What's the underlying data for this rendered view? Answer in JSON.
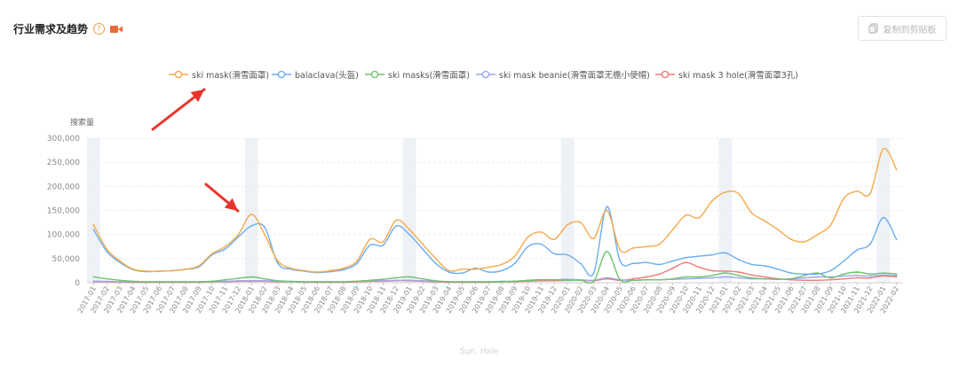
{
  "header": {
    "title": "行业需求及趋势",
    "help_icon": "question-circle-icon",
    "video_icon": "video-camera-icon"
  },
  "toolbar": {
    "copy_label": "复制到剪贴板",
    "copy_icon": "clipboard-icon"
  },
  "watermark": "Sun. Hale",
  "colors": {
    "orange": "#f5a94a",
    "blue": "#6aaef0",
    "green": "#6cc46c",
    "purple": "#9aa7ee",
    "red": "#ee7a7a",
    "grid": "#ececec",
    "band": "#eef1f6",
    "arrow": "#e8352b"
  },
  "chart_data": {
    "type": "line",
    "ylabel": "搜索量",
    "ylim": [
      0,
      300000
    ],
    "yticks": [
      "0",
      "50,000",
      "100,000",
      "150,000",
      "200,000",
      "250,000",
      "300,000"
    ],
    "categories": [
      "2017-01",
      "2017-02",
      "2017-03",
      "2017-04",
      "2017-05",
      "2017-06",
      "2017-07",
      "2017-08",
      "2017-09",
      "2017-10",
      "2017-11",
      "2017-12",
      "2018-01",
      "2018-02",
      "2018-03",
      "2018-04",
      "2018-05",
      "2018-06",
      "2018-07",
      "2018-08",
      "2018-09",
      "2018-10",
      "2018-11",
      "2018-12",
      "2019-01",
      "2019-02",
      "2019-03",
      "2019-04",
      "2019-05",
      "2019-06",
      "2019-07",
      "2019-08",
      "2019-09",
      "2019-10",
      "2019-11",
      "2019-12",
      "2020-01",
      "2020-02",
      "2020-03",
      "2020-04",
      "2020-05",
      "2020-06",
      "2020-07",
      "2020-08",
      "2020-09",
      "2020-10",
      "2020-11",
      "2020-12",
      "2021-01",
      "2021-02",
      "2021-03",
      "2021-04",
      "2021-05",
      "2021-06",
      "2021-07",
      "2021-08",
      "2021-09",
      "2021-10",
      "2021-11",
      "2021-12",
      "2022-01",
      "2022-02"
    ],
    "highlight_bands": [
      "2017-01",
      "2018-01",
      "2019-01",
      "2020-01",
      "2021-01",
      "2022-01"
    ],
    "series": [
      {
        "name": "ski mask(滑雪面罩)",
        "color": "#f5a94a",
        "values": [
          120000,
          70000,
          45000,
          28000,
          24000,
          24000,
          25000,
          28000,
          35000,
          60000,
          75000,
          100000,
          142000,
          100000,
          45000,
          30000,
          25000,
          22000,
          25000,
          30000,
          45000,
          90000,
          85000,
          130000,
          110000,
          80000,
          50000,
          25000,
          28000,
          28000,
          32000,
          38000,
          55000,
          95000,
          105000,
          90000,
          120000,
          125000,
          92000,
          150000,
          68000,
          72000,
          75000,
          80000,
          110000,
          140000,
          135000,
          170000,
          188000,
          185000,
          145000,
          128000,
          110000,
          90000,
          85000,
          100000,
          120000,
          175000,
          190000,
          185000,
          278000,
          235000
        ]
      },
      {
        "name": "balaclava(头盔)",
        "color": "#6aaef0",
        "values": [
          110000,
          65000,
          42000,
          27000,
          23000,
          24000,
          25000,
          28000,
          33000,
          58000,
          70000,
          95000,
          118000,
          115000,
          40000,
          28000,
          24000,
          21000,
          23000,
          27000,
          40000,
          78000,
          78000,
          118000,
          100000,
          70000,
          40000,
          22000,
          20000,
          30000,
          22000,
          25000,
          40000,
          75000,
          80000,
          60000,
          58000,
          40000,
          20000,
          158000,
          45000,
          40000,
          42000,
          38000,
          45000,
          52000,
          55000,
          58000,
          62000,
          48000,
          38000,
          35000,
          28000,
          20000,
          18000,
          18000,
          25000,
          45000,
          68000,
          80000,
          135000,
          90000
        ]
      },
      {
        "name": "ski masks(滑雪面罩)",
        "color": "#6cc46c",
        "values": [
          12000,
          8000,
          5000,
          3000,
          2000,
          2000,
          2000,
          2000,
          2000,
          3000,
          6000,
          9000,
          12000,
          8000,
          4000,
          3000,
          2000,
          2000,
          2000,
          2000,
          3000,
          5000,
          7000,
          10000,
          12000,
          8000,
          4000,
          2000,
          2000,
          2000,
          2000,
          2000,
          3000,
          5000,
          6000,
          6000,
          5000,
          5000,
          3000,
          65000,
          6000,
          5000,
          6000,
          6000,
          8000,
          12000,
          12000,
          15000,
          20000,
          15000,
          10000,
          8000,
          7000,
          8000,
          15000,
          20000,
          10000,
          18000,
          22000,
          18000,
          20000,
          18000
        ]
      },
      {
        "name": "ski mask beanie(滑雪面罩无檐小便帽)",
        "color": "#9aa7ee",
        "values": [
          3000,
          3000,
          2000,
          2000,
          2000,
          2000,
          2000,
          2000,
          2000,
          3000,
          3000,
          4000,
          4000,
          4000,
          3000,
          2000,
          2000,
          2000,
          2000,
          2000,
          3000,
          4000,
          4000,
          5000,
          5000,
          4000,
          3000,
          2000,
          2000,
          2000,
          2000,
          3000,
          3000,
          5000,
          6000,
          6000,
          7000,
          6000,
          5000,
          10000,
          6000,
          5000,
          6000,
          6000,
          7000,
          8000,
          9000,
          10000,
          12000,
          10000,
          8000,
          8000,
          7000,
          8000,
          10000,
          12000,
          12000,
          14000,
          15000,
          14000,
          16000,
          15000
        ]
      },
      {
        "name": "ski mask 3 hole(滑雪面罩3孔)",
        "color": "#ee7a7a",
        "values": [
          2000,
          2000,
          1000,
          1000,
          1000,
          1000,
          1000,
          1000,
          1000,
          2000,
          2000,
          3000,
          3000,
          3000,
          2000,
          2000,
          1000,
          1000,
          1000,
          1000,
          2000,
          3000,
          3000,
          4000,
          4000,
          3000,
          2000,
          1000,
          1000,
          1000,
          1000,
          2000,
          2000,
          3000,
          4000,
          4000,
          5000,
          5000,
          4000,
          8000,
          5000,
          8000,
          12000,
          18000,
          30000,
          42000,
          32000,
          25000,
          24000,
          22000,
          16000,
          12000,
          8000,
          6000,
          5000,
          5000,
          6000,
          8000,
          10000,
          10000,
          14000,
          12000
        ]
      }
    ]
  }
}
